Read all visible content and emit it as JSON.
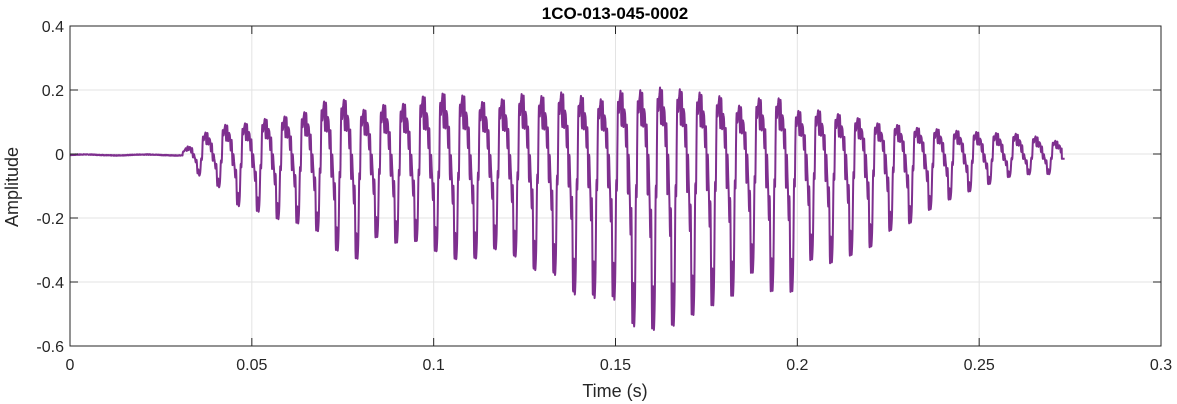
{
  "chart_data": {
    "type": "line",
    "title": "1CO-013-045-0002",
    "xlabel": "Time (s)",
    "ylabel": "Amplitude",
    "xlim": [
      0,
      0.3
    ],
    "ylim": [
      -0.6,
      0.4
    ],
    "xticks": [
      0,
      0.05,
      0.1,
      0.15,
      0.2,
      0.25,
      0.3
    ],
    "xtick_labels": [
      "0",
      "0.05",
      "0.1",
      "0.15",
      "0.2",
      "0.25",
      "0.3"
    ],
    "yticks": [
      -0.6,
      -0.4,
      -0.2,
      0,
      0.2,
      0.4
    ],
    "ytick_labels": [
      "-0.6",
      "-0.4",
      "-0.2",
      "0",
      "0.2",
      "0.4"
    ],
    "grid": true,
    "box": true,
    "series": [
      {
        "color": "#7E2F8E",
        "sample_rate_hz": 16000,
        "fundamental_hz": 184,
        "onset_s": 0.031,
        "end_s": 0.2735,
        "pre_onset_level": -0.003,
        "end_value": -0.015,
        "envelope_positive": [
          [
            0.031,
            0.01
          ],
          [
            0.036,
            0.09
          ],
          [
            0.05,
            0.14
          ],
          [
            0.07,
            0.2
          ],
          [
            0.09,
            0.22
          ],
          [
            0.12,
            0.24
          ],
          [
            0.145,
            0.24
          ],
          [
            0.165,
            0.26
          ],
          [
            0.2,
            0.2
          ],
          [
            0.23,
            0.12
          ],
          [
            0.26,
            0.09
          ],
          [
            0.2735,
            0.05
          ]
        ],
        "envelope_negative": [
          [
            0.031,
            -0.01
          ],
          [
            0.036,
            -0.07
          ],
          [
            0.05,
            -0.18
          ],
          [
            0.065,
            -0.24
          ],
          [
            0.08,
            -0.3
          ],
          [
            0.1,
            -0.28
          ],
          [
            0.13,
            -0.35
          ],
          [
            0.15,
            -0.48
          ],
          [
            0.16,
            -0.52
          ],
          [
            0.18,
            -0.44
          ],
          [
            0.2,
            -0.38
          ],
          [
            0.22,
            -0.3
          ],
          [
            0.24,
            -0.16
          ],
          [
            0.26,
            -0.07
          ],
          [
            0.2735,
            -0.06
          ]
        ]
      }
    ]
  }
}
